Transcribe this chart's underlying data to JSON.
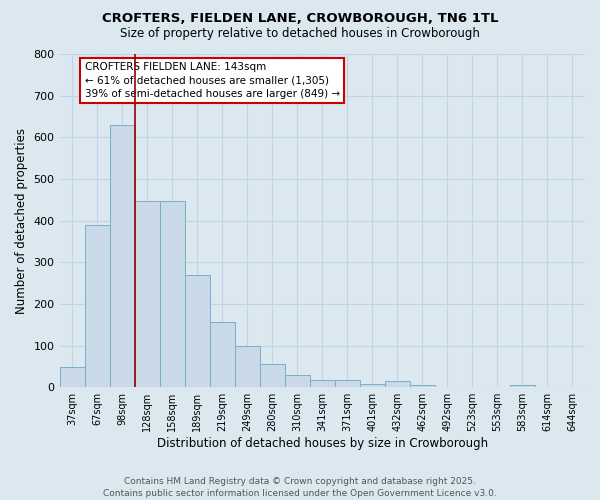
{
  "title": "CROFTERS, FIELDEN LANE, CROWBOROUGH, TN6 1TL",
  "subtitle": "Size of property relative to detached houses in Crowborough",
  "xlabel": "Distribution of detached houses by size in Crowborough",
  "ylabel": "Number of detached properties",
  "categories": [
    "37sqm",
    "67sqm",
    "98sqm",
    "128sqm",
    "158sqm",
    "189sqm",
    "219sqm",
    "249sqm",
    "280sqm",
    "310sqm",
    "341sqm",
    "371sqm",
    "401sqm",
    "432sqm",
    "462sqm",
    "492sqm",
    "523sqm",
    "553sqm",
    "583sqm",
    "614sqm",
    "644sqm"
  ],
  "values": [
    48,
    390,
    630,
    448,
    448,
    270,
    157,
    99,
    56,
    30,
    17,
    17,
    7,
    14,
    5,
    1,
    0,
    0,
    5,
    0,
    0
  ],
  "bar_color": "#c9d9e8",
  "bar_edge_color": "#7aafc8",
  "grid_color": "#c0d4e4",
  "vline_x_index": 2.5,
  "vline_color": "#990000",
  "annotation_text": "CROFTERS FIELDEN LANE: 143sqm\n← 61% of detached houses are smaller (1,305)\n39% of semi-detached houses are larger (849) →",
  "annotation_box_color": "white",
  "annotation_box_edge": "#cc0000",
  "ylim": [
    0,
    800
  ],
  "yticks": [
    0,
    100,
    200,
    300,
    400,
    500,
    600,
    700,
    800
  ],
  "footer": "Contains HM Land Registry data © Crown copyright and database right 2025.\nContains public sector information licensed under the Open Government Licence v3.0.",
  "bg_color": "#dce8f0",
  "plot_bg_color": "#dce8f0"
}
